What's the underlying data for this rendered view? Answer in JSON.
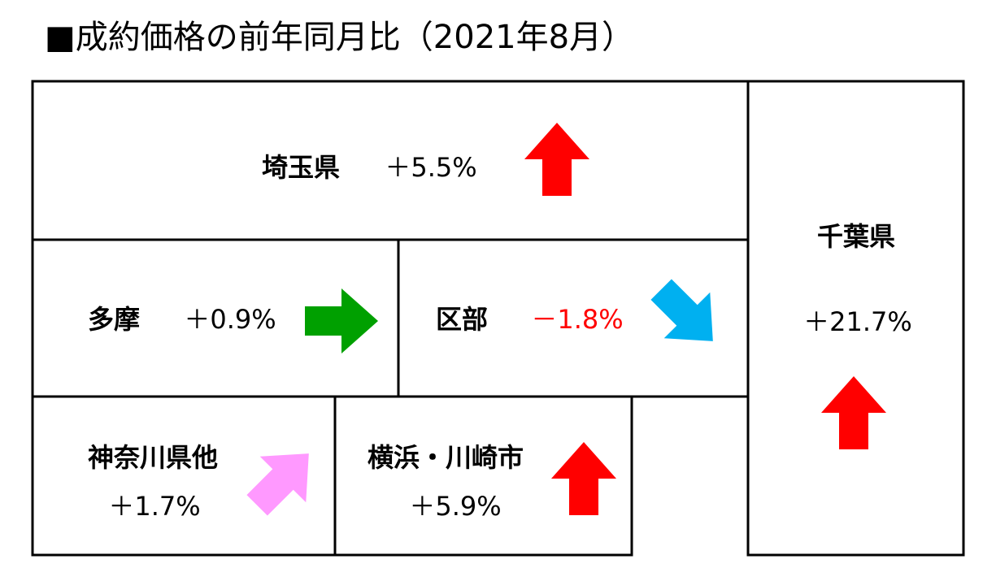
{
  "title": "■成約価格の前年同月比（2021年8月）",
  "regions": [
    {
      "name": "埼玉県",
      "change": "＋5.5%"
    },
    {
      "name": "多摩",
      "change": "＋0.9%"
    },
    {
      "name": "区部",
      "change": "－1.8%"
    },
    {
      "name": "神奈川県他",
      "change": "＋1.7%"
    },
    {
      "name": "横浜・川崎市",
      "change": "＋5.9%"
    },
    {
      "name": "千葉県",
      "change": "＋21.7%"
    }
  ]
}
